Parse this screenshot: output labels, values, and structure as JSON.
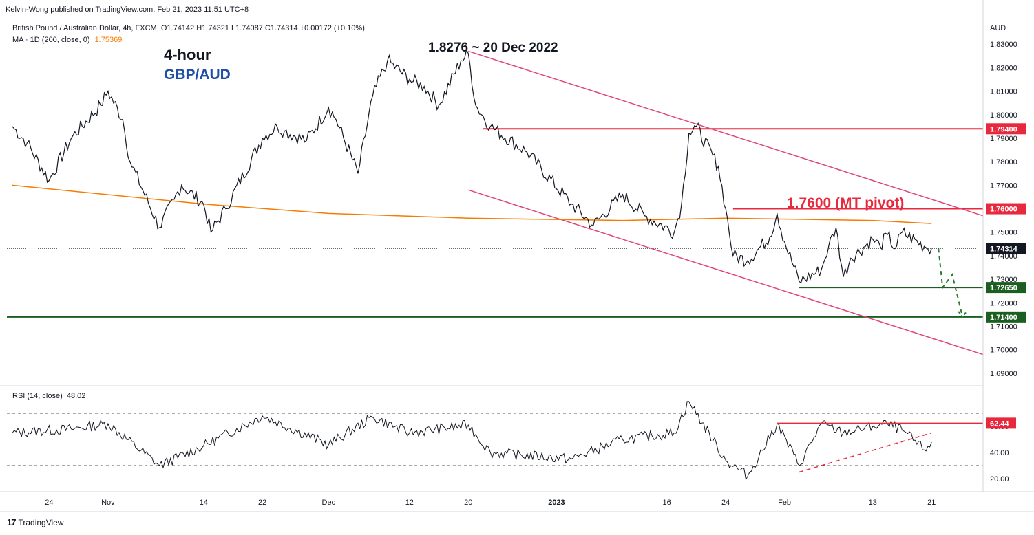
{
  "header": {
    "published": "Kelvin-Wong published on TradingView.com, Feb 21, 2023 11:51 UTC+8"
  },
  "legend": {
    "symbol_name": "British Pound / Australian Dollar, 4h, FXCM",
    "ohlc": "O1.74142  H1.74321  L1.74087  C1.74314  +0.00172 (+0.10%)",
    "ma_label": "MA · 1D (200, close, 0)",
    "ma_value": "1.75369",
    "rsi_label": "RSI (14, close)",
    "rsi_value": "48.02"
  },
  "footer": {
    "brand": "TradingView",
    "logo": "17"
  },
  "colors": {
    "price": "#131722",
    "ma": "#f57c00",
    "red": "#e8283c",
    "pink_channel": "#e0457b",
    "green": "#1b5e20",
    "green_dashed": "#2e7d32",
    "axis_text": "#131722",
    "blue_title": "#1e4ea5"
  },
  "chart_data": [
    {
      "type": "line",
      "title": "4-hour",
      "subtitle": "GBP/AUD",
      "y_unit": "AUD",
      "ylim": [
        1.685,
        1.84
      ],
      "y_ticks": [
        "1.83000",
        "1.82000",
        "1.81000",
        "1.80000",
        "1.79000",
        "1.78000",
        "1.77000",
        "1.76000",
        "1.75000",
        "1.74000",
        "1.73000",
        "1.72000",
        "1.71000",
        "1.70000",
        "1.69000"
      ],
      "x_ticks": [
        "24",
        "Nov",
        "14",
        "22",
        "Dec",
        "12",
        "20",
        "2023",
        "16",
        "24",
        "Feb",
        "13",
        "21"
      ],
      "series": [
        {
          "x": [
            "Oct 19",
            "Oct 21",
            "Oct 24",
            "Oct 27",
            "Oct 31",
            "Nov 1",
            "Nov 3",
            "Nov 4",
            "Nov 8",
            "Nov 10",
            "Nov 11",
            "Nov 14",
            "Nov 15",
            "Nov 17",
            "Nov 22",
            "Nov 24",
            "Nov 25",
            "Nov 28",
            "Dec 1",
            "Dec 2",
            "Dec 5",
            "Dec 7",
            "Dec 9",
            "Dec 12",
            "Dec 14",
            "Dec 16",
            "Dec 19",
            "Dec 20",
            "Dec 21",
            "Dec 23",
            "Dec 28",
            "Jan 3",
            "Jan 6",
            "Jan 10",
            "Jan 13",
            "Jan 17",
            "Jan 18",
            "Jan 19",
            "Jan 20",
            "Jan 23",
            "Jan 24",
            "Jan 25",
            "Jan 27",
            "Jan 30",
            "Jan 31",
            "Feb 1",
            "Feb 3",
            "Feb 6",
            "Feb 7",
            "Feb 8",
            "Feb 9",
            "Feb 10",
            "Feb 13",
            "Feb 14",
            "Feb 15",
            "Feb 16",
            "Feb 17",
            "Feb 20",
            "Feb 21"
          ],
          "values": [
            1.795,
            1.788,
            1.772,
            1.79,
            1.804,
            1.81,
            1.798,
            1.78,
            1.752,
            1.764,
            1.77,
            1.762,
            1.75,
            1.76,
            1.79,
            1.795,
            1.793,
            1.789,
            1.803,
            1.798,
            1.775,
            1.808,
            1.823,
            1.815,
            1.812,
            1.804,
            1.823,
            1.826,
            1.804,
            1.795,
            1.784,
            1.762,
            1.753,
            1.766,
            1.757,
            1.75,
            1.762,
            1.792,
            1.795,
            1.778,
            1.76,
            1.74,
            1.738,
            1.748,
            1.758,
            1.746,
            1.729,
            1.734,
            1.744,
            1.752,
            1.731,
            1.739,
            1.747,
            1.744,
            1.749,
            1.743,
            1.75,
            1.744,
            1.7431
          ]
        },
        {
          "name": "MA · 1D (200, close, 0)",
          "x": [
            "Oct 19",
            "Nov 14",
            "Dec 1",
            "Dec 20",
            "Jan 10",
            "Jan 24",
            "Feb 13",
            "Feb 21"
          ],
          "values": [
            1.77,
            1.762,
            1.758,
            1.756,
            1.755,
            1.756,
            1.755,
            1.7537
          ]
        }
      ],
      "price_labels": [
        "1.79400",
        "1.76000",
        "1.74314",
        "1.72650",
        "1.71400"
      ],
      "levels": [
        {
          "value": 1.794,
          "label": "1.79400",
          "color": "red"
        },
        {
          "value": 1.76,
          "label": "1.76000",
          "color": "red"
        },
        {
          "value": 1.7265,
          "label": "1.72650",
          "color": "green"
        },
        {
          "value": 1.714,
          "label": "1.71400",
          "color": "green"
        }
      ],
      "annotations": [
        {
          "text": "1.8276 ~ 20 Dec 2022"
        },
        {
          "text": "1.7600 (MT pivot)"
        }
      ],
      "channel": {
        "upper": [
          {
            "x": "Dec 20",
            "y": 1.827
          },
          {
            "x": "Feb 28",
            "y": 1.757
          }
        ],
        "lower": [
          {
            "x": "Dec 20",
            "y": 1.768
          },
          {
            "x": "Feb 28",
            "y": 1.698
          }
        ]
      },
      "grid": false
    },
    {
      "type": "line",
      "title": "RSI (14, close)",
      "ylim": [
        10,
        90
      ],
      "y_ticks": [
        "60.00",
        "40.00",
        "20.00"
      ],
      "bands": [
        70,
        30
      ],
      "level_label": "62.44",
      "series": [
        {
          "name": "RSI",
          "x": [
            "Oct 19",
            "Oct 27",
            "Nov 1",
            "Nov 8",
            "Nov 14",
            "Nov 22",
            "Dec 1",
            "Dec 7",
            "Dec 12",
            "Dec 20",
            "Dec 23",
            "Jan 3",
            "Jan 10",
            "Jan 17",
            "Jan 19",
            "Jan 24",
            "Jan 27",
            "Jan 31",
            "Feb 3",
            "Feb 6",
            "Feb 9",
            "Feb 13",
            "Feb 15",
            "Feb 17",
            "Feb 20",
            "Feb 21"
          ],
          "values": [
            55,
            58,
            62,
            30,
            45,
            68,
            46,
            67,
            55,
            61,
            40,
            35,
            50,
            55,
            79,
            34,
            22,
            62,
            30,
            62,
            55,
            60,
            62,
            57,
            42,
            48
          ]
        }
      ],
      "latest_value": 48.02,
      "grid": false
    }
  ]
}
